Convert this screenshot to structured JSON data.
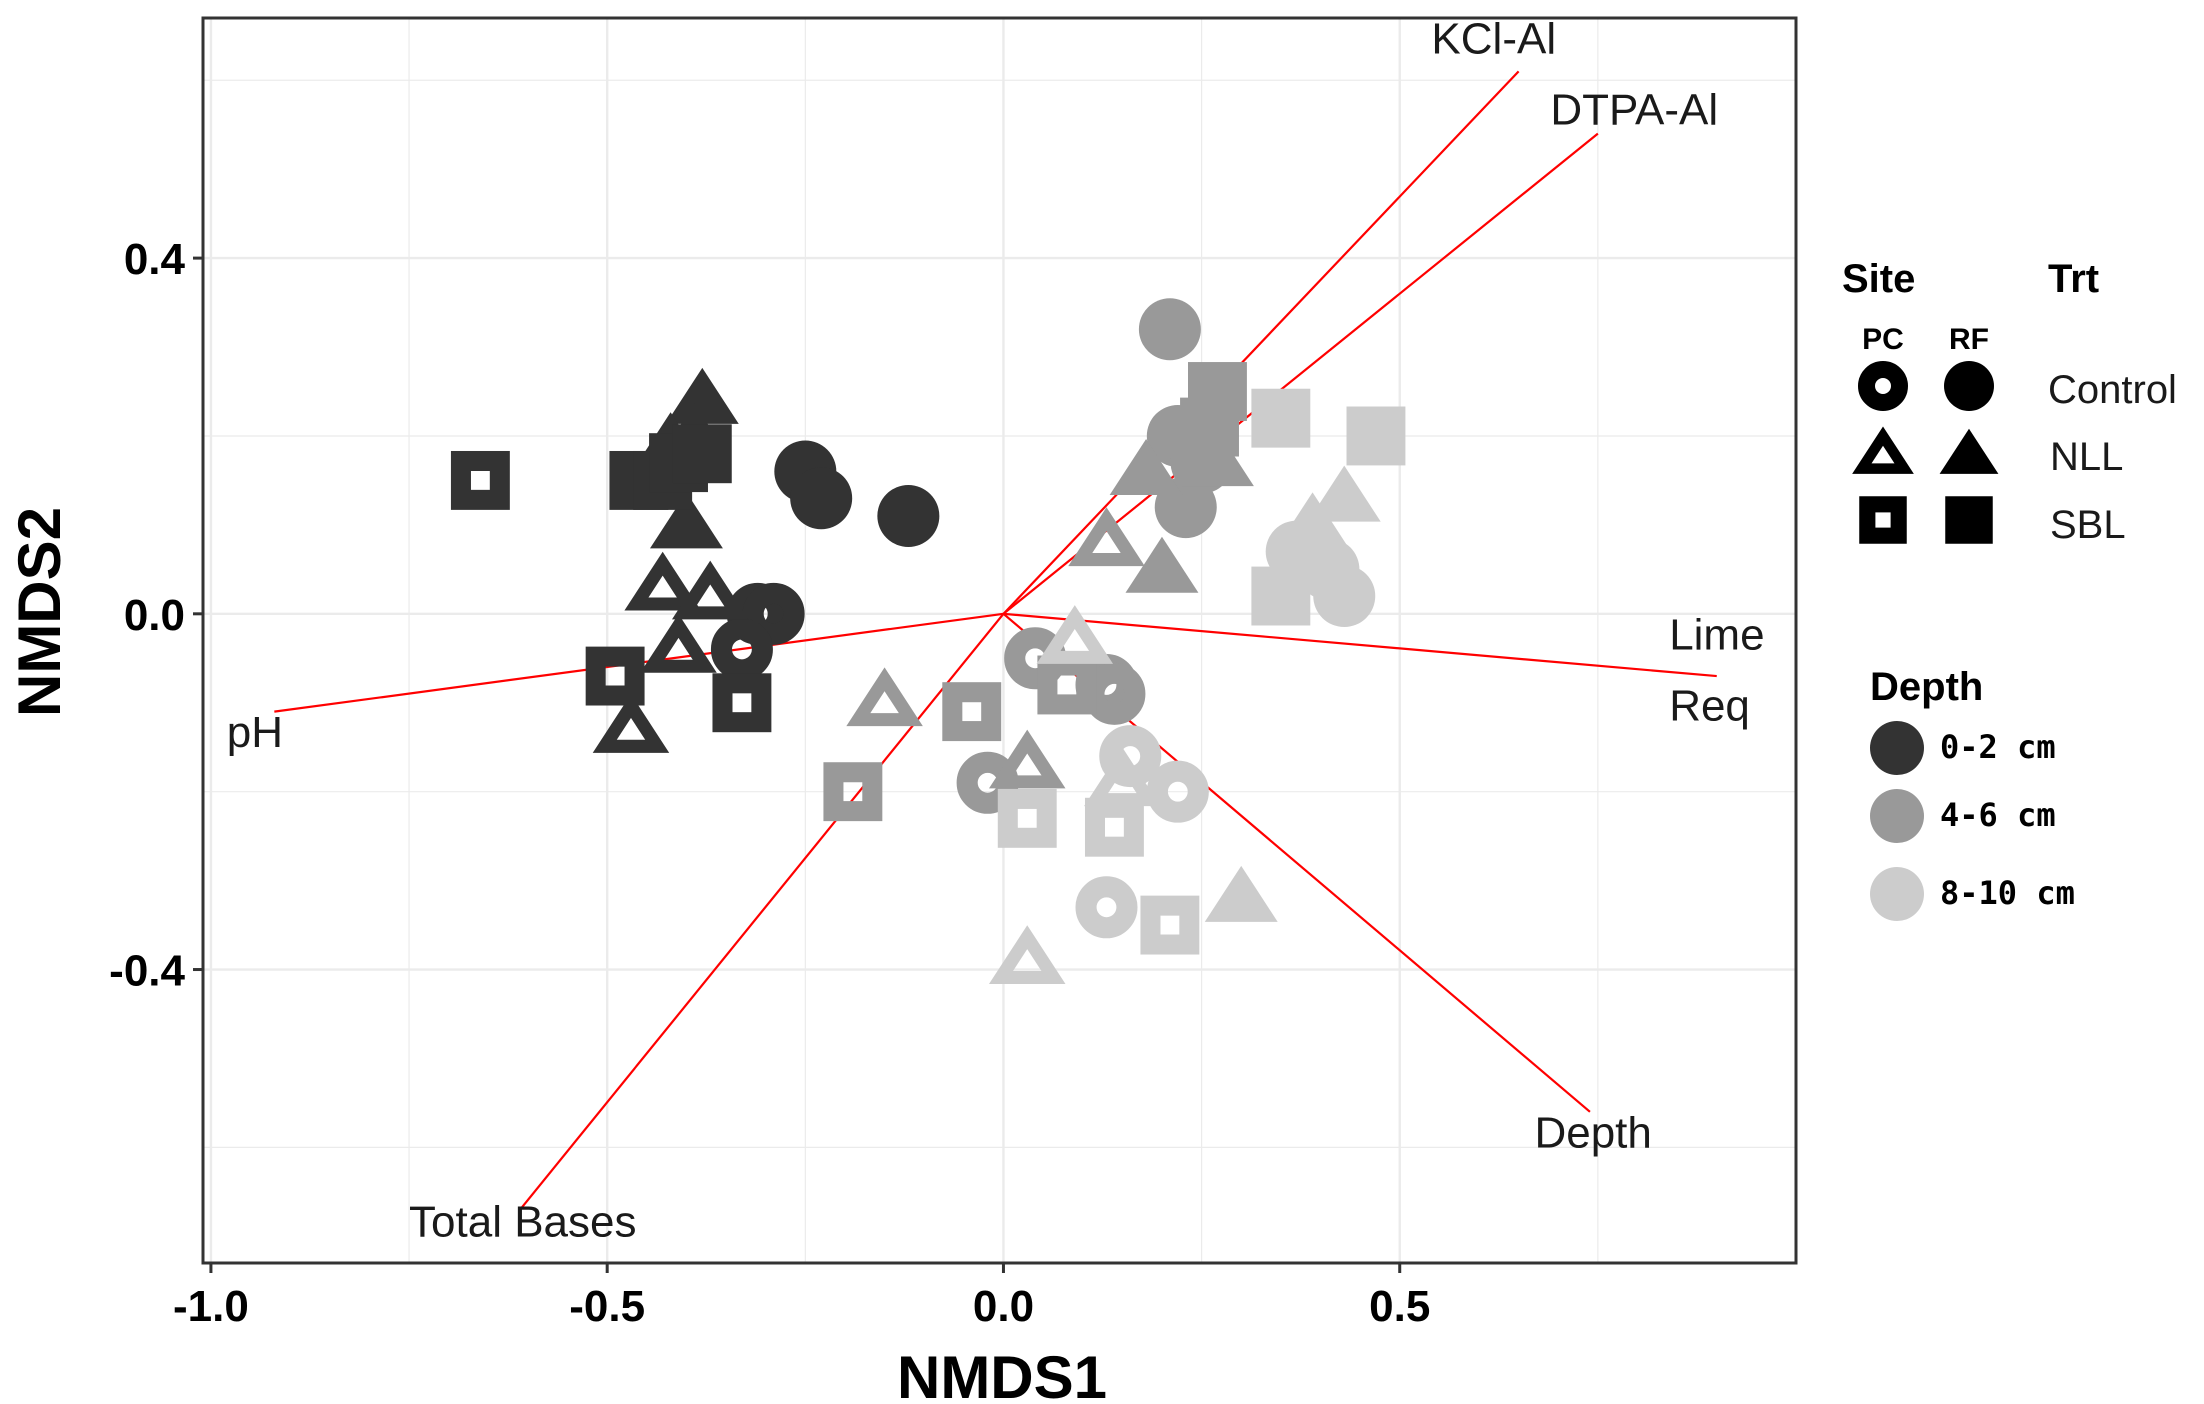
{
  "chart_data": {
    "type": "scatter",
    "xlabel": "NMDS1",
    "ylabel": "NMDS2",
    "xlim": [
      -1.01,
      1.0
    ],
    "ylim": [
      -0.73,
      0.67
    ],
    "x_ticks": [
      -1.0,
      -0.5,
      0.0,
      0.5
    ],
    "x_tick_labels": [
      "-1.0",
      "-0.5",
      "0.0",
      "0.5"
    ],
    "y_ticks": [
      -0.4,
      0.0,
      0.4
    ],
    "y_tick_labels": [
      "-0.4",
      "0.0",
      "0.4"
    ],
    "grid": true,
    "colors": {
      "0-2 cm": "#333333",
      "4-6 cm": "#999999",
      "8-10 cm": "#cccccc",
      "vector": "#ff0000",
      "grid": "#ebebeb",
      "panel_border": "#333333"
    },
    "vectors": [
      {
        "name": "KCl-Al",
        "x": 0.65,
        "y": 0.61
      },
      {
        "name": "DTPA-Al",
        "x": 0.75,
        "y": 0.54
      },
      {
        "name": "Lime Req",
        "x": 0.9,
        "y": -0.07
      },
      {
        "name": "Depth",
        "x": 0.74,
        "y": -0.56
      },
      {
        "name": "Total Bases",
        "x": -0.61,
        "y": -0.67
      },
      {
        "name": "pH",
        "x": -0.92,
        "y": -0.11
      }
    ],
    "vector_labels": [
      {
        "text": "KCl-Al",
        "x": 0.54,
        "y": 0.63
      },
      {
        "text": "DTPA-Al",
        "x": 0.69,
        "y": 0.55
      },
      {
        "text": "Lime",
        "x": 0.84,
        "y": -0.04
      },
      {
        "text": "Req",
        "x": 0.84,
        "y": -0.12
      },
      {
        "text": "Depth",
        "x": 0.67,
        "y": -0.6
      },
      {
        "text": "Total Bases",
        "x": -0.75,
        "y": -0.7
      },
      {
        "text": "pH",
        "x": -0.98,
        "y": -0.15
      }
    ],
    "series": [
      {
        "name": "0-2 cm RF Control",
        "depth": "0-2 cm",
        "site": "RF",
        "trt": "Control",
        "points": [
          [
            -0.25,
            0.16
          ],
          [
            -0.23,
            0.13
          ],
          [
            -0.12,
            0.11
          ]
        ]
      },
      {
        "name": "0-2 cm PC Control",
        "depth": "0-2 cm",
        "site": "PC",
        "trt": "Control",
        "points": [
          [
            -0.31,
            0.0
          ],
          [
            -0.29,
            0.0
          ],
          [
            -0.33,
            -0.04
          ]
        ]
      },
      {
        "name": "0-2 cm RF NLL",
        "depth": "0-2 cm",
        "site": "RF",
        "trt": "NLL",
        "points": [
          [
            -0.38,
            0.24
          ],
          [
            -0.39,
            0.2
          ],
          [
            -0.42,
            0.19
          ],
          [
            -0.4,
            0.1
          ]
        ]
      },
      {
        "name": "0-2 cm PC NLL",
        "depth": "0-2 cm",
        "site": "PC",
        "trt": "NLL",
        "points": [
          [
            -0.43,
            0.03
          ],
          [
            -0.37,
            0.02
          ],
          [
            -0.41,
            -0.04
          ],
          [
            -0.47,
            -0.13
          ]
        ]
      },
      {
        "name": "0-2 cm RF SBL",
        "depth": "0-2 cm",
        "site": "RF",
        "trt": "SBL",
        "points": [
          [
            -0.46,
            0.15
          ],
          [
            -0.43,
            0.15
          ],
          [
            -0.41,
            0.17
          ],
          [
            -0.38,
            0.18
          ]
        ]
      },
      {
        "name": "0-2 cm PC SBL",
        "depth": "0-2 cm",
        "site": "PC",
        "trt": "SBL",
        "points": [
          [
            -0.66,
            0.15
          ],
          [
            -0.49,
            -0.07
          ],
          [
            -0.33,
            -0.1
          ]
        ]
      },
      {
        "name": "4-6 cm RF Control",
        "depth": "4-6 cm",
        "site": "RF",
        "trt": "Control",
        "points": [
          [
            0.21,
            0.32
          ],
          [
            0.22,
            0.2
          ],
          [
            0.25,
            0.17
          ],
          [
            0.23,
            0.12
          ]
        ]
      },
      {
        "name": "4-6 cm PC Control",
        "depth": "4-6 cm",
        "site": "PC",
        "trt": "Control",
        "points": [
          [
            0.04,
            -0.05
          ],
          [
            0.13,
            -0.08
          ],
          [
            0.14,
            -0.09
          ],
          [
            -0.02,
            -0.19
          ]
        ]
      },
      {
        "name": "4-6 cm RF NLL",
        "depth": "4-6 cm",
        "site": "RF",
        "trt": "NLL",
        "points": [
          [
            0.18,
            0.16
          ],
          [
            0.27,
            0.17
          ],
          [
            0.2,
            0.05
          ]
        ]
      },
      {
        "name": "4-6 cm PC NLL",
        "depth": "4-6 cm",
        "site": "PC",
        "trt": "NLL",
        "points": [
          [
            0.13,
            0.08
          ],
          [
            -0.15,
            -0.1
          ],
          [
            0.03,
            -0.17
          ]
        ]
      },
      {
        "name": "4-6 cm RF SBL",
        "depth": "4-6 cm",
        "site": "RF",
        "trt": "SBL",
        "points": [
          [
            0.27,
            0.25
          ],
          [
            0.26,
            0.21
          ]
        ]
      },
      {
        "name": "4-6 cm PC SBL",
        "depth": "4-6 cm",
        "site": "PC",
        "trt": "SBL",
        "points": [
          [
            -0.04,
            -0.11
          ],
          [
            0.08,
            -0.08
          ],
          [
            -0.19,
            -0.2
          ]
        ]
      },
      {
        "name": "8-10 cm RF Control",
        "depth": "8-10 cm",
        "site": "RF",
        "trt": "Control",
        "points": [
          [
            0.37,
            0.07
          ],
          [
            0.41,
            0.05
          ],
          [
            0.43,
            0.02
          ]
        ]
      },
      {
        "name": "8-10 cm PC Control",
        "depth": "8-10 cm",
        "site": "PC",
        "trt": "Control",
        "points": [
          [
            0.16,
            -0.16
          ],
          [
            0.22,
            -0.2
          ],
          [
            0.13,
            -0.33
          ]
        ]
      },
      {
        "name": "8-10 cm RF NLL",
        "depth": "8-10 cm",
        "site": "RF",
        "trt": "NLL",
        "points": [
          [
            0.39,
            0.1
          ],
          [
            0.43,
            0.13
          ],
          [
            0.3,
            -0.32
          ]
        ]
      },
      {
        "name": "8-10 cm PC NLL",
        "depth": "8-10 cm",
        "site": "PC",
        "trt": "NLL",
        "points": [
          [
            0.09,
            -0.03
          ],
          [
            0.15,
            -0.19
          ],
          [
            0.03,
            -0.39
          ]
        ]
      },
      {
        "name": "8-10 cm RF SBL",
        "depth": "8-10 cm",
        "site": "RF",
        "trt": "SBL",
        "points": [
          [
            0.35,
            0.22
          ],
          [
            0.47,
            0.2
          ],
          [
            0.35,
            0.02
          ]
        ]
      },
      {
        "name": "8-10 cm PC SBL",
        "depth": "8-10 cm",
        "site": "PC",
        "trt": "SBL",
        "points": [
          [
            0.03,
            -0.23
          ],
          [
            0.14,
            -0.24
          ],
          [
            0.21,
            -0.35
          ]
        ]
      }
    ]
  },
  "legend": {
    "site_title": "Site",
    "trt_title": "Trt",
    "site_pc": "PC",
    "site_rf": "RF",
    "trt_items": [
      "Control",
      "NLL",
      "SBL"
    ],
    "depth_title": "Depth",
    "depth_items": [
      "0-2 cm",
      "4-6 cm",
      "8-10 cm"
    ]
  }
}
